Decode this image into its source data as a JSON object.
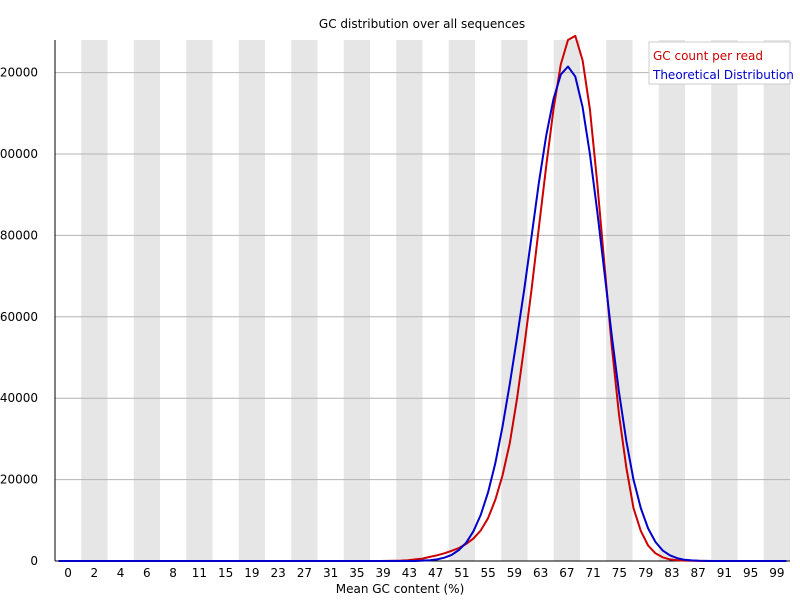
{
  "chart_data": {
    "type": "line",
    "title": "GC distribution over all sequences",
    "xlabel": "Mean GC content (%)",
    "ylabel": "",
    "xlim": [
      0,
      101
    ],
    "ylim": [
      0,
      128000
    ],
    "grid": true,
    "legend_position": "top-right",
    "x_tick_labels": [
      "0",
      "2",
      "4",
      "6",
      "8",
      "11",
      "15",
      "19",
      "23",
      "27",
      "31",
      "35",
      "39",
      "43",
      "47",
      "51",
      "55",
      "59",
      "63",
      "67",
      "71",
      "75",
      "79",
      "83",
      "87",
      "91",
      "95",
      "99"
    ],
    "y_ticks": [
      0,
      20000,
      40000,
      60000,
      80000,
      100000,
      120000
    ],
    "y_tick_labels": [
      "0",
      "20000",
      "40000",
      "60000",
      "80000",
      "100000",
      "120000"
    ],
    "colors": {
      "gc_count": "#cc0000",
      "theoretical": "#0000cc",
      "band": "#e6e6e6",
      "gridline": "#b4b4b4"
    },
    "series": [
      {
        "name": "GC count per read",
        "color": "#cc0000",
        "x": [
          0,
          44,
          47,
          48,
          49,
          50,
          51,
          52,
          53,
          54,
          55,
          56,
          57,
          58,
          59,
          60,
          61,
          62,
          63,
          64,
          65,
          66,
          67,
          68,
          69,
          70,
          71,
          72,
          73,
          74,
          75,
          76,
          77,
          78,
          79,
          80,
          81,
          82,
          83,
          84,
          85,
          86,
          87,
          88,
          89,
          90,
          91,
          92,
          93,
          94,
          95,
          96,
          97,
          98,
          99,
          100
        ],
        "values": [
          0,
          0,
          100,
          200,
          400,
          600,
          1000,
          1400,
          1900,
          2500,
          3200,
          4200,
          5500,
          7500,
          10500,
          15000,
          21000,
          29000,
          40000,
          53000,
          67000,
          82000,
          97000,
          111000,
          122000,
          128000,
          129000,
          123000,
          111000,
          93000,
          73000,
          53000,
          36000,
          23000,
          13000,
          7400,
          3800,
          1900,
          900,
          400,
          200,
          100,
          50,
          20,
          0,
          0,
          0,
          0,
          0,
          0,
          0,
          0,
          0,
          0,
          0,
          0
        ]
      },
      {
        "name": "Theoretical Distribution",
        "color": "#0000cc",
        "x": [
          0,
          49,
          50,
          51,
          52,
          53,
          54,
          55,
          56,
          57,
          58,
          59,
          60,
          61,
          62,
          63,
          64,
          65,
          66,
          67,
          68,
          69,
          70,
          71,
          72,
          73,
          74,
          75,
          76,
          77,
          78,
          79,
          80,
          81,
          82,
          83,
          84,
          85,
          86,
          87,
          88,
          89,
          90,
          91,
          92,
          93,
          94,
          95,
          96,
          97,
          98,
          99,
          100
        ],
        "values": [
          0,
          0,
          100,
          200,
          400,
          800,
          1500,
          2700,
          4500,
          7300,
          11300,
          16800,
          24000,
          33000,
          43500,
          55000,
          67000,
          80000,
          93000,
          104500,
          113500,
          119500,
          121500,
          119000,
          111500,
          100000,
          86000,
          71000,
          55500,
          41500,
          29500,
          20000,
          13000,
          8000,
          4700,
          2600,
          1400,
          700,
          300,
          150,
          60,
          20,
          0,
          0,
          0,
          0,
          0,
          0,
          0,
          0,
          0,
          0,
          0
        ]
      }
    ]
  }
}
